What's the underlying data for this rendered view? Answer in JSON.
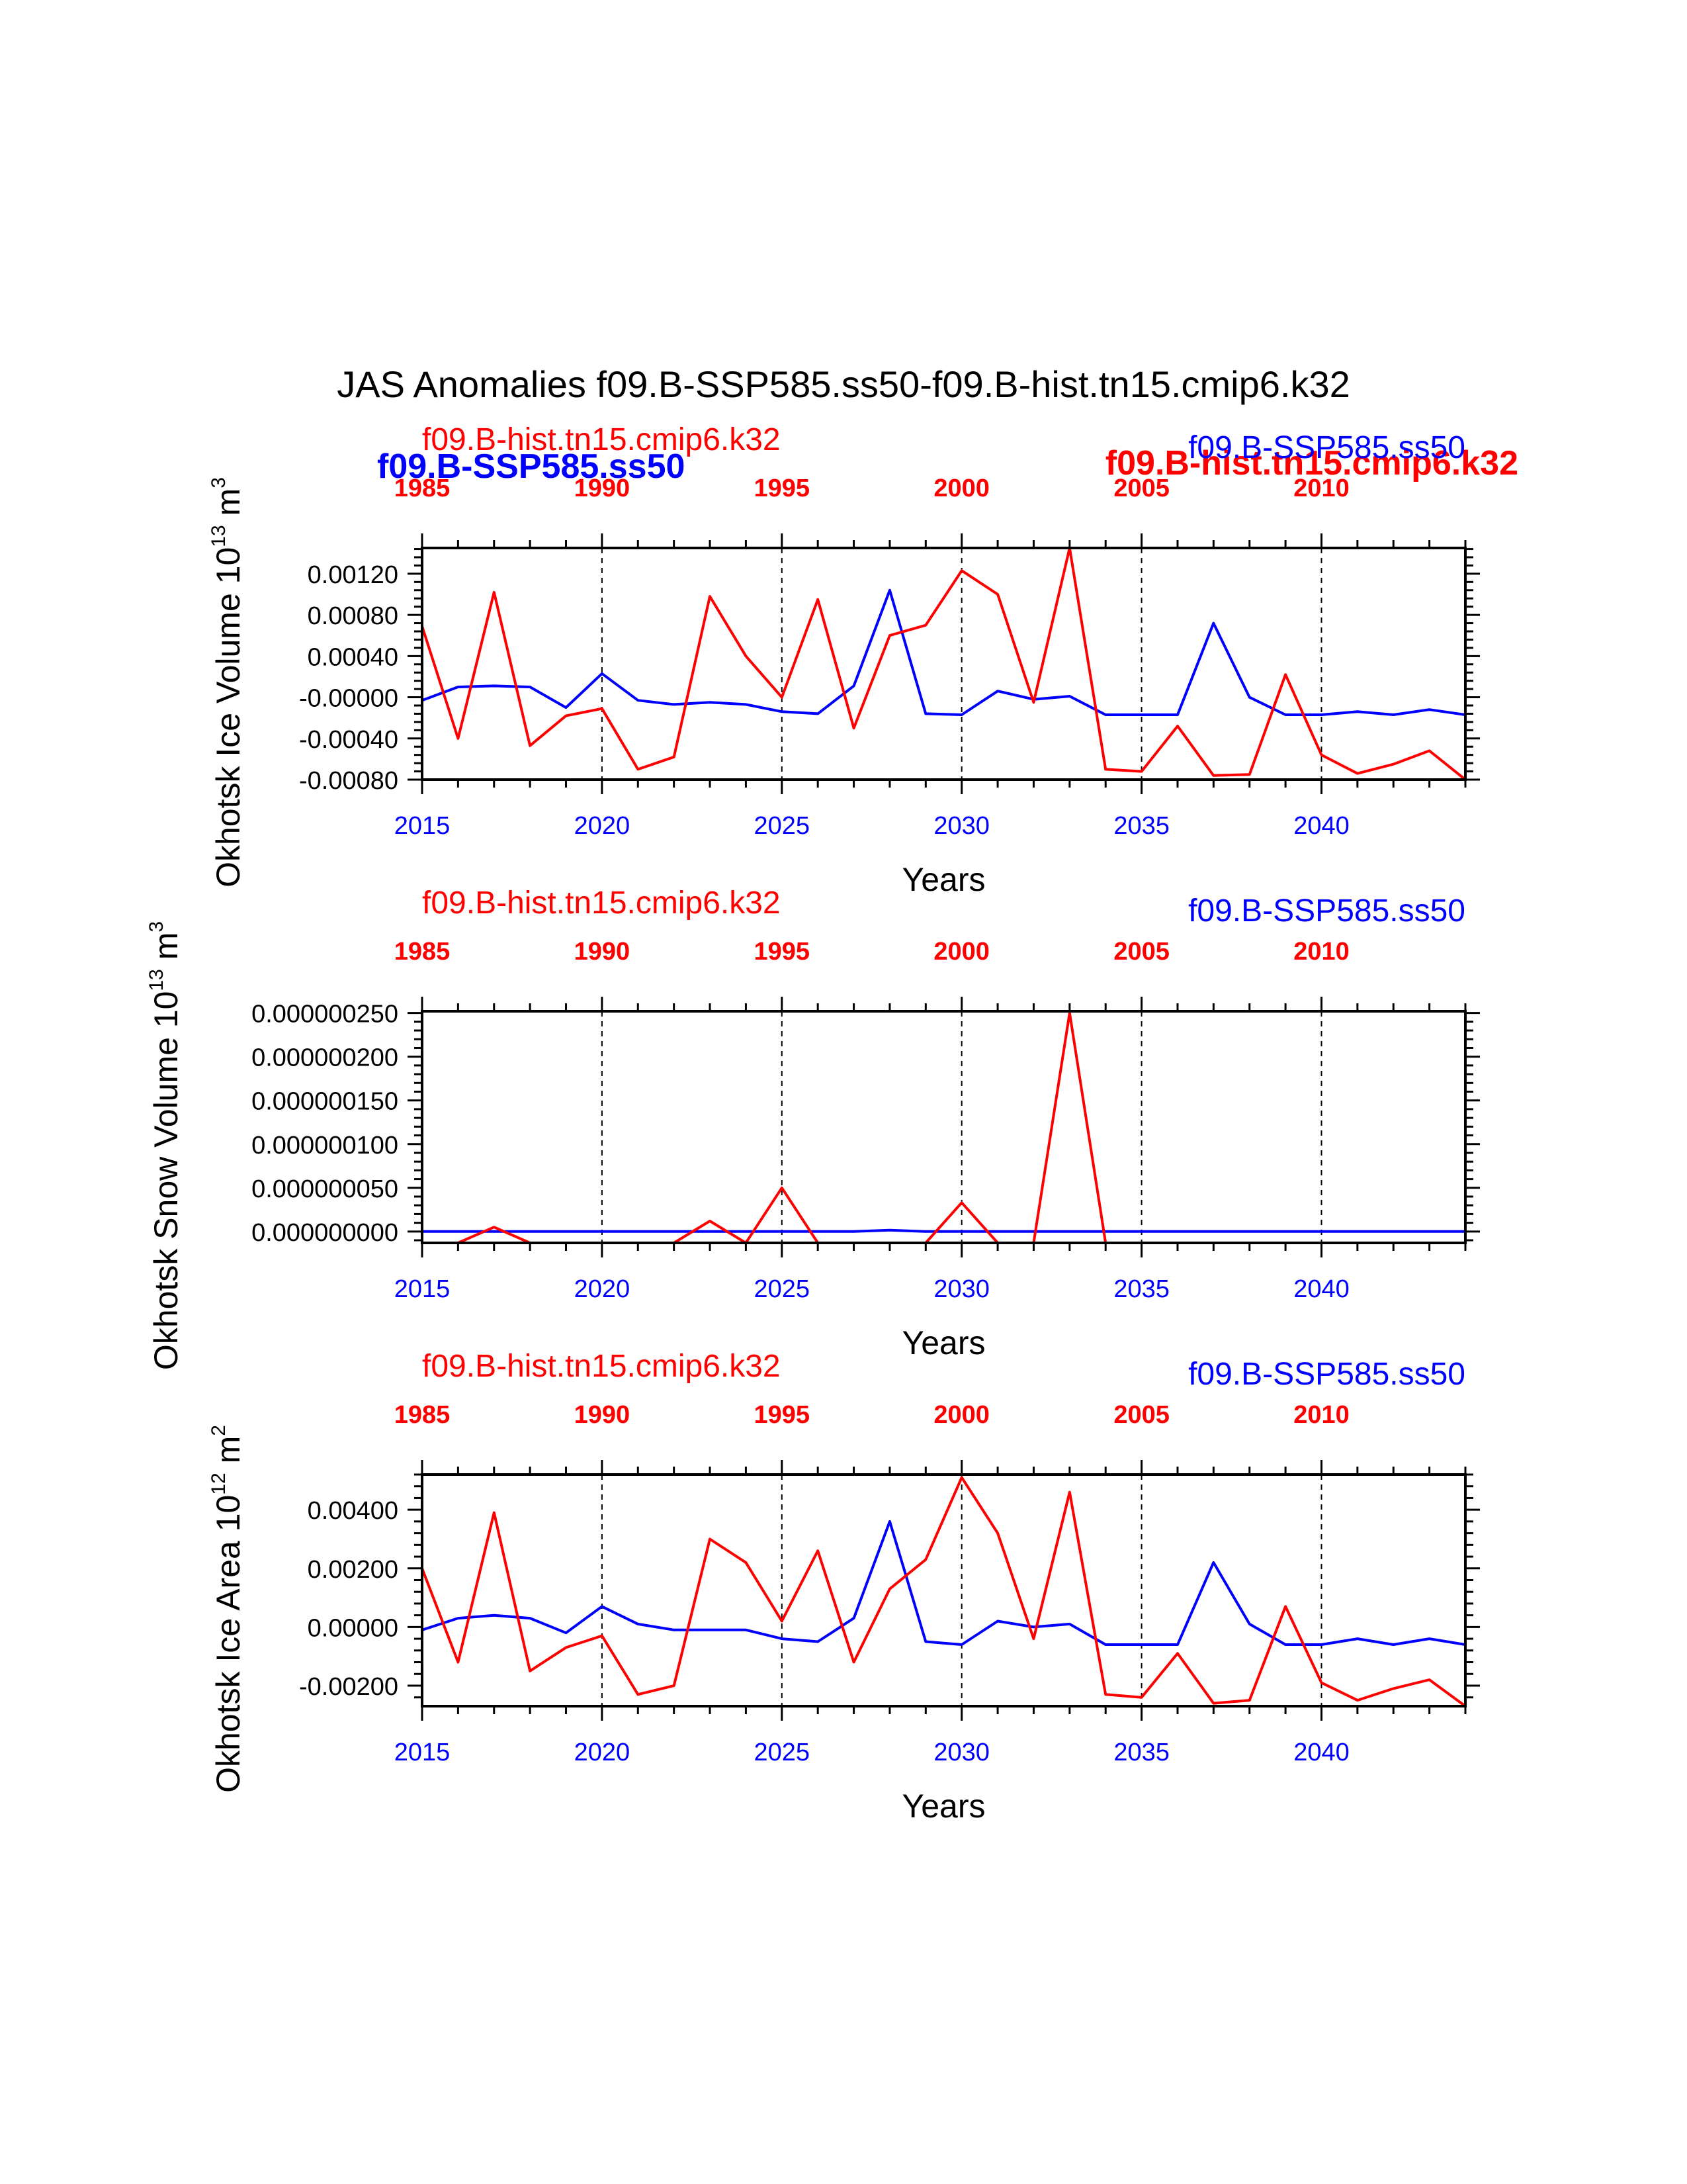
{
  "title": "JAS Anomalies f09.B-SSP585.ss50-f09.B-hist.tn15.cmip6.k32",
  "legend": {
    "blue_label": "f09.B-SSP585.ss50",
    "red_label": "f09.B-hist.tn15.cmip6.k32"
  },
  "colors": {
    "ssp": "#0000ff",
    "hist": "#ff0000",
    "axis": "#000000"
  },
  "chart_data": [
    {
      "type": "line",
      "ylabel": "Okhotsk Ice Volume 10",
      "ylabel_exp": "13",
      "ylabel_unit": " m",
      "ylabel_unit_exp": "3",
      "xlabel": "Years",
      "top_label_left": "f09.B-hist.tn15.cmip6.k32",
      "top_label_right": "f09.B-SSP585.ss50",
      "ylim": [
        -0.0008,
        0.00145
      ],
      "yticks": [
        -0.0008,
        -0.0004,
        0.0,
        0.0004,
        0.0008,
        0.0012
      ],
      "ytick_labels": [
        "-0.00080",
        "-0.00040",
        "-0.00000",
        "0.00040",
        "0.00080",
        "0.00120"
      ],
      "xlim": [
        2015,
        2044
      ],
      "x_bottom_ticks": [
        2015,
        2020,
        2025,
        2030,
        2035,
        2040
      ],
      "x_top_ticks": [
        1985,
        1990,
        1995,
        2000,
        2005,
        2010
      ],
      "series": [
        {
          "name": "f09.B-SSP585.ss50",
          "x_start": 2015,
          "values": [
            -3e-05,
            0.0001,
            0.00011,
            0.0001,
            -0.0001,
            0.00023,
            -3e-05,
            -7e-05,
            -5e-05,
            -7e-05,
            -0.00014,
            -0.00016,
            0.00011,
            0.00104,
            -0.00016,
            -0.00017,
            6e-05,
            -2e-05,
            1e-05,
            -0.00017,
            -0.00017,
            -0.00017,
            0.00072,
            0.0,
            -0.00017,
            -0.00017,
            -0.00014,
            -0.00017,
            -0.00012,
            -0.00017
          ]
        },
        {
          "name": "f09.B-hist.tn15.cmip6.k32",
          "x_start": 2015,
          "values": [
            0.00069,
            -0.0004,
            0.00102,
            -0.00047,
            -0.00018,
            -0.00011,
            -0.0007,
            -0.00058,
            0.00098,
            0.0004,
            0.0,
            0.00095,
            -0.0003,
            0.0006,
            0.0007,
            0.00123,
            0.001,
            -5e-05,
            0.00145,
            -0.0007,
            -0.00072,
            -0.00028,
            -0.00076,
            -0.00075,
            0.00022,
            -0.00056,
            -0.00074,
            -0.00065,
            -0.00052,
            -0.0008
          ]
        }
      ]
    },
    {
      "type": "line",
      "ylabel": "Okhotsk Snow Volume 10",
      "ylabel_exp": "13",
      "ylabel_unit": " m",
      "ylabel_unit_exp": "3",
      "xlabel": "Years",
      "top_label_left": "f09.B-hist.tn15.cmip6.k32",
      "top_label_right": "f09.B-SSP585.ss50",
      "ylim": [
        -1.3e-08,
        2.52e-07
      ],
      "yticks": [
        0.0,
        5e-08,
        1e-07,
        1.5e-07,
        2e-07,
        2.5e-07
      ],
      "ytick_labels": [
        "0.000000000",
        "0.000000050",
        "0.000000100",
        "0.000000150",
        "0.000000200",
        "0.000000250"
      ],
      "xlim": [
        2015,
        2044
      ],
      "x_bottom_ticks": [
        2015,
        2020,
        2025,
        2030,
        2035,
        2040
      ],
      "x_top_ticks": [
        1985,
        1990,
        1995,
        2000,
        2005,
        2010
      ],
      "series": [
        {
          "name": "f09.B-SSP585.ss50",
          "x_start": 2015,
          "values": [
            0,
            0,
            0,
            0,
            0,
            0,
            0,
            0,
            0,
            0,
            0,
            0,
            0,
            1.5e-09,
            0,
            0,
            0,
            0,
            0,
            0,
            0,
            0,
            0,
            0,
            0,
            0,
            0,
            0,
            0,
            0
          ]
        },
        {
          "name": "f09.B-hist.tn15.cmip6.k32",
          "x_start": 2015,
          "values": [
            -1.3e-08,
            -1.3e-08,
            5e-09,
            -1.3e-08,
            -1.3e-08,
            -1.3e-08,
            -1.3e-08,
            -1.3e-08,
            1.2e-08,
            -1.3e-08,
            5e-08,
            -1.3e-08,
            -1.3e-08,
            -1.3e-08,
            -1.3e-08,
            3.3e-08,
            -1.3e-08,
            -1.3e-08,
            2.5e-07,
            -1.3e-08,
            -1.3e-08,
            -1.3e-08,
            -1.3e-08,
            -1.3e-08,
            -1.3e-08,
            -1.3e-08,
            -1.3e-08,
            -1.3e-08,
            -1.3e-08,
            -1.3e-08
          ]
        }
      ]
    },
    {
      "type": "line",
      "ylabel": "Okhotsk Ice Area 10",
      "ylabel_exp": "12",
      "ylabel_unit": " m",
      "ylabel_unit_exp": "2",
      "xlabel": "Years",
      "top_label_left": "f09.B-hist.tn15.cmip6.k32",
      "top_label_right": "f09.B-SSP585.ss50",
      "ylim": [
        -0.0027,
        0.0052
      ],
      "yticks": [
        -0.002,
        0.0,
        0.002,
        0.004
      ],
      "ytick_labels": [
        "-0.00200",
        "0.00000",
        "0.00200",
        "0.00400"
      ],
      "xlim": [
        2015,
        2044
      ],
      "x_bottom_ticks": [
        2015,
        2020,
        2025,
        2030,
        2035,
        2040
      ],
      "x_top_ticks": [
        1985,
        1990,
        1995,
        2000,
        2005,
        2010
      ],
      "series": [
        {
          "name": "f09.B-SSP585.ss50",
          "x_start": 2015,
          "values": [
            -0.0001,
            0.0003,
            0.0004,
            0.0003,
            -0.0002,
            0.0007,
            0.0001,
            -0.0001,
            -0.0001,
            -0.0001,
            -0.0004,
            -0.0005,
            0.0003,
            0.0036,
            -0.0005,
            -0.0006,
            0.0002,
            0.0,
            0.0001,
            -0.0006,
            -0.0006,
            -0.0006,
            0.0022,
            0.0001,
            -0.0006,
            -0.0006,
            -0.0004,
            -0.0006,
            -0.0004,
            -0.0006
          ]
        },
        {
          "name": "f09.B-hist.tn15.cmip6.k32",
          "x_start": 2015,
          "values": [
            0.002,
            -0.0012,
            0.0039,
            -0.0015,
            -0.0007,
            -0.0003,
            -0.0023,
            -0.002,
            0.003,
            0.0022,
            0.0002,
            0.0026,
            -0.0012,
            0.0013,
            0.0023,
            0.0051,
            0.0032,
            -0.0004,
            0.0046,
            -0.0023,
            -0.0024,
            -0.0009,
            -0.0026,
            -0.0025,
            0.0007,
            -0.0019,
            -0.0025,
            -0.0021,
            -0.0018,
            -0.0027
          ]
        }
      ]
    }
  ]
}
